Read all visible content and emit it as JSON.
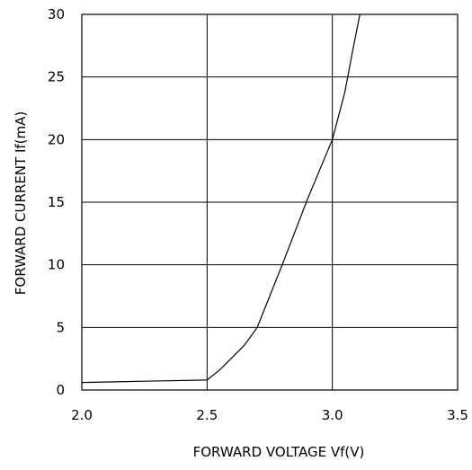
{
  "chart_data": {
    "type": "line",
    "xlabel": "FORWARD VOLTAGE Vf(V)",
    "ylabel": "FORWARD CURRENT If(mA)",
    "xlim": [
      2.0,
      3.5
    ],
    "ylim": [
      0,
      30
    ],
    "x_ticks": [
      "2.0",
      "2.5",
      "3.0",
      "3.5"
    ],
    "y_ticks": [
      "0",
      "5",
      "10",
      "15",
      "20",
      "25",
      "30"
    ],
    "grid": true,
    "series": [
      {
        "x": [
          2.0,
          2.25,
          2.5,
          2.55,
          2.6,
          2.65,
          2.7,
          2.75,
          2.8,
          2.9,
          3.0,
          3.05,
          3.08,
          3.11
        ],
        "y": [
          0.6,
          0.7,
          0.8,
          1.6,
          2.6,
          3.6,
          5.0,
          7.5,
          10.0,
          15.2,
          20.0,
          23.8,
          27.0,
          30.0
        ]
      }
    ],
    "colors": {
      "line": "#000000",
      "grid": "#000000"
    }
  }
}
